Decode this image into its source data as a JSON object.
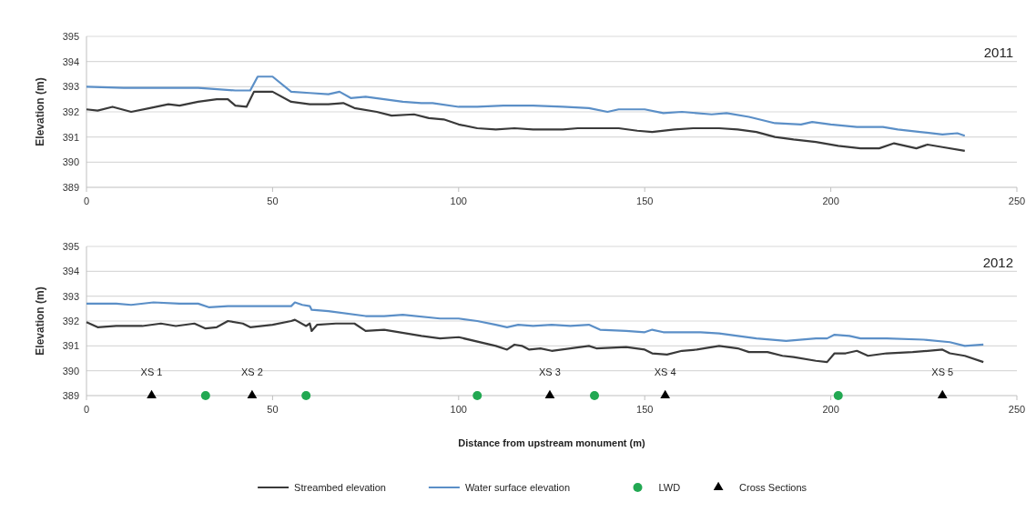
{
  "chart_data": [
    {
      "type": "line",
      "title": "2011",
      "ylabel": "Elevation (m)",
      "xlim": [
        0,
        250
      ],
      "xticks": [
        0,
        50,
        100,
        150,
        200,
        250
      ],
      "ylim": [
        389,
        395
      ],
      "yticks": [
        389,
        390,
        391,
        392,
        393,
        394,
        395
      ],
      "grid": "y",
      "legend": false,
      "marker": "none",
      "series": [
        {
          "color": "#3a3a3a",
          "x": [
            0,
            3,
            7,
            12,
            17,
            22,
            25,
            30,
            35,
            38,
            40,
            43,
            45,
            50,
            55,
            60,
            65,
            69,
            72,
            78,
            82,
            88,
            92,
            96,
            100,
            105,
            110,
            115,
            120,
            128,
            132,
            138,
            143,
            148,
            152,
            158,
            163,
            170,
            175,
            180,
            185,
            190,
            196,
            202,
            208,
            213,
            217,
            220,
            223,
            226,
            230,
            236
          ],
          "values": [
            392.1,
            392.05,
            392.2,
            392.0,
            392.15,
            392.3,
            392.25,
            392.4,
            392.5,
            392.5,
            392.25,
            392.2,
            392.8,
            392.8,
            392.4,
            392.3,
            392.3,
            392.35,
            392.15,
            392.0,
            391.85,
            391.9,
            391.75,
            391.7,
            391.5,
            391.35,
            391.3,
            391.35,
            391.3,
            391.3,
            391.35,
            391.35,
            391.35,
            391.25,
            391.2,
            391.3,
            391.35,
            391.35,
            391.3,
            391.2,
            391.0,
            390.9,
            390.8,
            390.65,
            390.55,
            390.55,
            390.75,
            390.65,
            390.55,
            390.7,
            390.6,
            390.45
          ]
        },
        {
          "color": "#5b8fc7",
          "x": [
            0,
            10,
            20,
            30,
            40,
            44,
            46,
            50,
            55,
            60,
            65,
            68,
            71,
            75,
            80,
            85,
            90,
            93,
            100,
            105,
            112,
            120,
            128,
            135,
            140,
            143,
            150,
            155,
            160,
            168,
            172,
            178,
            185,
            192,
            195,
            200,
            207,
            214,
            218,
            224,
            230,
            234,
            236
          ],
          "values": [
            393.0,
            392.95,
            392.95,
            392.95,
            392.85,
            392.85,
            393.4,
            393.4,
            392.8,
            392.75,
            392.7,
            392.8,
            392.55,
            392.6,
            392.5,
            392.4,
            392.35,
            392.35,
            392.2,
            392.2,
            392.25,
            392.25,
            392.2,
            392.15,
            392.0,
            392.1,
            392.1,
            391.95,
            392.0,
            391.9,
            391.95,
            391.8,
            391.55,
            391.5,
            391.6,
            391.5,
            391.4,
            391.4,
            391.3,
            391.2,
            391.1,
            391.15,
            391.05
          ]
        }
      ]
    },
    {
      "type": "line",
      "title": "2012",
      "ylabel": "Elevation (m)",
      "xlabel": "Distance from upstream monument (m)",
      "xlim": [
        0,
        250
      ],
      "xticks": [
        0,
        50,
        100,
        150,
        200,
        250
      ],
      "ylim": [
        389,
        395
      ],
      "yticks": [
        389,
        390,
        391,
        392,
        393,
        394,
        395
      ],
      "grid": "y",
      "legend": "bottom",
      "marker": "none",
      "series": [
        {
          "name": "Streambed elevation",
          "color": "#3a3a3a",
          "x": [
            0,
            3,
            8,
            15,
            20,
            24,
            29,
            32,
            35,
            38,
            42,
            44,
            50,
            55,
            56,
            59,
            60,
            60.5,
            62,
            67,
            72,
            75,
            80,
            90,
            95,
            100,
            110,
            113,
            115,
            117,
            119,
            122,
            125,
            130,
            135,
            137,
            145,
            150,
            152,
            156,
            160,
            164,
            170,
            175,
            178,
            183,
            187,
            190,
            196,
            199,
            201,
            204,
            207,
            210,
            215,
            222,
            226,
            230,
            232,
            236,
            241
          ],
          "values": [
            391.95,
            391.75,
            391.8,
            391.8,
            391.9,
            391.8,
            391.9,
            391.7,
            391.75,
            392.0,
            391.9,
            391.75,
            391.85,
            392.0,
            392.05,
            391.8,
            391.9,
            391.6,
            391.85,
            391.9,
            391.9,
            391.6,
            391.65,
            391.4,
            391.3,
            391.35,
            391.0,
            390.85,
            391.05,
            391.0,
            390.85,
            390.9,
            390.8,
            390.9,
            391.0,
            390.9,
            390.95,
            390.85,
            390.7,
            390.65,
            390.8,
            390.85,
            391.0,
            390.9,
            390.75,
            390.75,
            390.6,
            390.55,
            390.4,
            390.35,
            390.7,
            390.7,
            390.8,
            390.6,
            390.7,
            390.75,
            390.8,
            390.85,
            390.7,
            390.6,
            390.35
          ]
        },
        {
          "name": "Water surface elevation",
          "color": "#5b8fc7",
          "x": [
            0,
            8,
            12,
            18,
            25,
            30,
            33,
            38,
            45,
            55,
            56,
            58,
            60,
            60.5,
            65,
            75,
            80,
            85,
            95,
            100,
            105,
            110,
            113,
            116,
            120,
            125,
            130,
            135,
            138,
            145,
            150,
            152,
            155,
            160,
            165,
            170,
            180,
            188,
            196,
            199,
            201,
            205,
            208,
            215,
            225,
            232,
            236,
            241
          ],
          "values": [
            392.7,
            392.7,
            392.65,
            392.75,
            392.7,
            392.7,
            392.55,
            392.6,
            392.6,
            392.6,
            392.75,
            392.65,
            392.6,
            392.45,
            392.4,
            392.2,
            392.2,
            392.25,
            392.1,
            392.1,
            392.0,
            391.85,
            391.75,
            391.85,
            391.8,
            391.85,
            391.8,
            391.85,
            391.65,
            391.6,
            391.55,
            391.65,
            391.55,
            391.55,
            391.55,
            391.5,
            391.3,
            391.2,
            391.3,
            391.3,
            391.45,
            391.4,
            391.3,
            391.3,
            391.25,
            391.15,
            391.0,
            391.05
          ]
        },
        {
          "name": "LWD",
          "type": "scatter",
          "marker": "circle",
          "color": "#22a852",
          "x": [
            32,
            59,
            105,
            136.5,
            202
          ],
          "values": [
            389,
            389,
            389,
            389,
            389
          ]
        },
        {
          "name": "Cross Sections",
          "type": "scatter",
          "marker": "triangle",
          "color": "#000000",
          "x": [
            17.5,
            44.5,
            124.5,
            155.5,
            230
          ],
          "values": [
            389,
            389,
            389,
            389,
            389
          ],
          "value_labels": [
            "XS 1",
            "XS 2",
            "XS 3",
            "XS 4",
            "XS 5"
          ]
        }
      ]
    }
  ]
}
